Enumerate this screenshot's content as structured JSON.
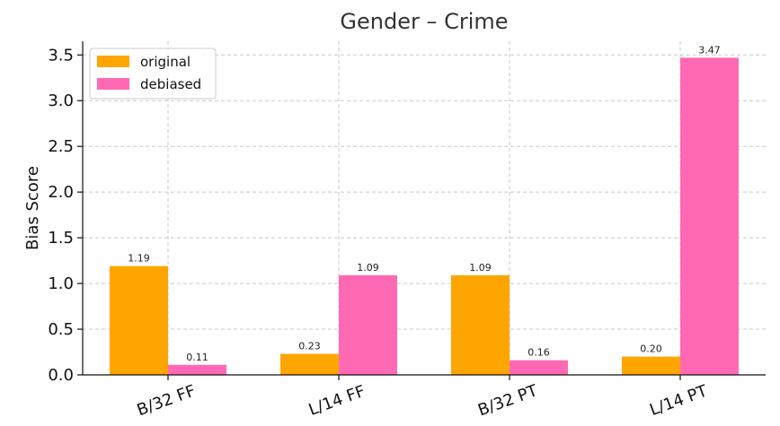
{
  "chart_data": {
    "type": "bar",
    "title": "Gender – Crime",
    "xlabel": "",
    "ylabel": "Bias Score",
    "categories": [
      "B/32 FF",
      "L/14 FF",
      "B/32 PT",
      "L/14 PT"
    ],
    "series": [
      {
        "name": "original",
        "color": "#FFA500",
        "values": [
          1.19,
          0.23,
          1.09,
          0.2
        ],
        "labels": [
          "1.19",
          "0.23",
          "1.09",
          "0.20"
        ]
      },
      {
        "name": "debiased",
        "color": "#FF69B4",
        "values": [
          0.11,
          1.09,
          0.16,
          3.47
        ],
        "labels": [
          "0.11",
          "1.09",
          "0.16",
          "3.47"
        ]
      }
    ],
    "ylim": [
      0,
      3.65
    ],
    "yticks": [
      "0.0",
      "0.5",
      "1.0",
      "1.5",
      "2.0",
      "2.5",
      "3.0",
      "3.5"
    ],
    "grid": true,
    "legend_position": "top-left"
  }
}
